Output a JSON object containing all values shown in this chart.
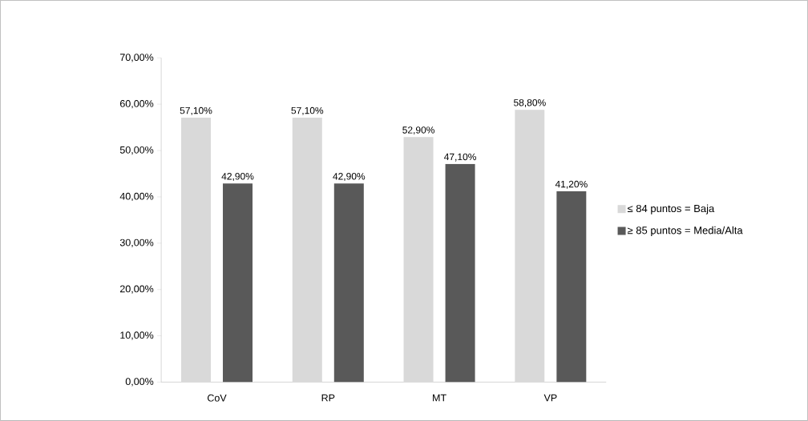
{
  "chart_data": {
    "type": "bar",
    "categories": [
      "CoV",
      "RP",
      "MT",
      "VP"
    ],
    "series": [
      {
        "name": "≤ 84 puntos = Baja",
        "color": "#d9d9d9",
        "values": [
          57.1,
          57.1,
          52.9,
          58.8
        ],
        "value_labels": [
          "57,10%",
          "57,10%",
          "52,90%",
          "58,80%"
        ]
      },
      {
        "name": "≥ 85 puntos = Media/Alta",
        "color": "#595959",
        "values": [
          42.9,
          42.9,
          47.1,
          41.2
        ],
        "value_labels": [
          "42,90%",
          "42,90%",
          "47,10%",
          "41,20%"
        ]
      }
    ],
    "ylim": [
      0,
      70
    ],
    "yticks": [
      {
        "value": 0,
        "label": "0,00%"
      },
      {
        "value": 10,
        "label": "10,00%"
      },
      {
        "value": 20,
        "label": "20,00%"
      },
      {
        "value": 30,
        "label": "30,00%"
      },
      {
        "value": 40,
        "label": "40,00%"
      },
      {
        "value": 50,
        "label": "50,00%"
      },
      {
        "value": 60,
        "label": "60,00%"
      },
      {
        "value": 70,
        "label": "70,00%"
      }
    ],
    "grid": false,
    "legend": "right"
  }
}
